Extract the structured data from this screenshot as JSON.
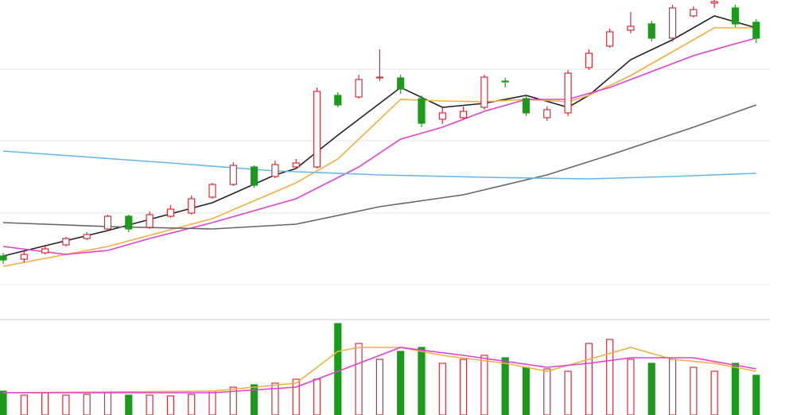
{
  "chart_data": [
    {
      "type": "candlestick",
      "open": [
        38,
        34,
        42,
        52,
        60,
        72,
        88,
        74,
        88,
        92,
        112,
        128,
        150,
        138,
        150,
        150,
        240,
        238,
        262,
        262,
        236,
        210,
        212,
        225,
        258,
        236,
        212,
        218,
        275,
        302,
        322,
        330,
        312,
        340,
        356,
        350,
        332
      ],
      "high": [
        42,
        44,
        52,
        62,
        68,
        90,
        90,
        94,
        102,
        114,
        130,
        156,
        152,
        158,
        160,
        250,
        244,
        266,
        298,
        266,
        240,
        224,
        226,
        266,
        262,
        240,
        226,
        272,
        298,
        324,
        345,
        334,
        354,
        352,
        360,
        354,
        336
      ],
      "low": [
        28,
        30,
        40,
        50,
        58,
        70,
        68,
        72,
        86,
        90,
        110,
        126,
        124,
        136,
        148,
        148,
        225,
        236,
        258,
        242,
        200,
        204,
        210,
        222,
        250,
        214,
        208,
        214,
        272,
        300,
        318,
        308,
        308,
        338,
        350,
        326,
        306
      ],
      "close": [
        33,
        40,
        47,
        60,
        65,
        88,
        72,
        90,
        97,
        110,
        128,
        152,
        127,
        153,
        155,
        245,
        228,
        260,
        263,
        248,
        205,
        218,
        220,
        263,
        257,
        218,
        222,
        268,
        293,
        320,
        327,
        312,
        350,
        348,
        358,
        330,
        312
      ],
      "up_color": "#d0303a",
      "down_color": "#1a9c1a",
      "ylim": [
        0,
        360
      ],
      "yticks": [
        2,
        92,
        183,
        273
      ],
      "grid": true,
      "series": [
        {
          "color": "#222222",
          "x": [
            0,
            5,
            10,
            13,
            14,
            16,
            18,
            19,
            21,
            23,
            25,
            27,
            28,
            30,
            32,
            34,
            36
          ],
          "values": [
            38,
            70,
            105,
            140,
            148,
            190,
            230,
            250,
            225,
            230,
            240,
            225,
            240,
            285,
            310,
            340,
            325
          ]
        },
        {
          "color": "#f0b040",
          "x": [
            0,
            5,
            10,
            14,
            16,
            18,
            19,
            21,
            23,
            25,
            27,
            28,
            30,
            32,
            34,
            36
          ],
          "values": [
            25,
            50,
            85,
            130,
            160,
            210,
            235,
            233,
            232,
            235,
            232,
            240,
            265,
            295,
            325,
            325
          ]
        },
        {
          "color": "#e040d0",
          "x": [
            0,
            3,
            5,
            7,
            10,
            14,
            17,
            19,
            21,
            23,
            25,
            27,
            29,
            31,
            33,
            35,
            36
          ],
          "values": [
            50,
            40,
            45,
            60,
            80,
            110,
            150,
            185,
            200,
            220,
            235,
            235,
            250,
            270,
            290,
            305,
            312
          ]
        },
        {
          "color": "#666666",
          "x": [
            0,
            5,
            10,
            14,
            18,
            22,
            26,
            29,
            33,
            36
          ],
          "values": [
            80,
            75,
            72,
            78,
            100,
            115,
            140,
            165,
            200,
            228
          ]
        },
        {
          "color": "#66b8e8",
          "x": [
            0,
            8,
            13,
            18,
            23,
            28,
            32,
            36
          ],
          "values": [
            170,
            155,
            145,
            140,
            137,
            135,
            138,
            142
          ]
        }
      ]
    },
    {
      "type": "volume",
      "values": [
        30,
        25,
        28,
        25,
        26,
        28,
        25,
        25,
        24,
        26,
        30,
        35,
        38,
        40,
        45,
        45,
        115,
        90,
        70,
        80,
        85,
        65,
        70,
        75,
        72,
        60,
        58,
        55,
        90,
        95,
        70,
        65,
        70,
        60,
        55,
        65,
        50
      ],
      "ylim": [
        0,
        120
      ],
      "series": [
        {
          "color": "#f0b040",
          "x": [
            0,
            10,
            14,
            15,
            16,
            17,
            19,
            21,
            24,
            26,
            28,
            30,
            32,
            34,
            36
          ],
          "values": [
            28,
            30,
            40,
            60,
            80,
            85,
            85,
            75,
            65,
            55,
            70,
            85,
            70,
            65,
            55
          ]
        },
        {
          "color": "#e040d0",
          "x": [
            0,
            10,
            14,
            16,
            18,
            19,
            22,
            26,
            28,
            30,
            33,
            36
          ],
          "values": [
            28,
            28,
            35,
            55,
            75,
            85,
            75,
            60,
            65,
            72,
            72,
            58
          ]
        }
      ]
    }
  ]
}
